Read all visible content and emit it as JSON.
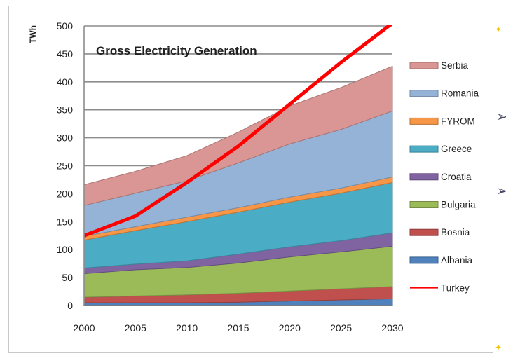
{
  "chart_data": {
    "type": "area",
    "title": "Gross Electricity Generation",
    "xlabel": "",
    "ylabel": "TWh",
    "ylim": [
      0,
      500
    ],
    "yticks": [
      0,
      50,
      100,
      150,
      200,
      250,
      300,
      350,
      400,
      450,
      500
    ],
    "categories": [
      "2000",
      "2005",
      "2010",
      "2015",
      "2020",
      "2025",
      "2030"
    ],
    "stacked": true,
    "grid": true,
    "legend_placement": "right",
    "series": [
      {
        "name": "Albania",
        "color": "#4f81bd",
        "values": [
          5,
          5,
          5,
          6,
          8,
          10,
          12
        ]
      },
      {
        "name": "Bosnia",
        "color": "#c0504d",
        "values": [
          10,
          12,
          14,
          16,
          18,
          20,
          22
        ]
      },
      {
        "name": "Bulgaria",
        "color": "#9bbb59",
        "values": [
          42,
          47,
          49,
          54,
          61,
          66,
          72
        ]
      },
      {
        "name": "Croatia",
        "color": "#8064a2",
        "values": [
          10,
          10,
          12,
          16,
          18,
          20,
          24
        ]
      },
      {
        "name": "Greece",
        "color": "#4bacc6",
        "values": [
          50,
          60,
          70,
          75,
          80,
          85,
          90
        ]
      },
      {
        "name": "FYROM",
        "color": "#f79646",
        "values": [
          7,
          7,
          8,
          8,
          9,
          9,
          10
        ]
      },
      {
        "name": "Romania",
        "color": "#95b3d7",
        "values": [
          55,
          60,
          65,
          80,
          95,
          105,
          118
        ]
      },
      {
        "name": "Serbia",
        "color": "#da9694",
        "values": [
          37,
          39,
          45,
          55,
          68,
          75,
          80
        ]
      }
    ],
    "line_series": [
      {
        "name": "Turkey",
        "color": "#ff0000",
        "values": [
          125,
          160,
          220,
          285,
          360,
          435,
          505
        ]
      }
    ]
  },
  "side_marks": {
    "color": "#f2c200",
    "diamond": "✦",
    "arrow": "➢"
  }
}
